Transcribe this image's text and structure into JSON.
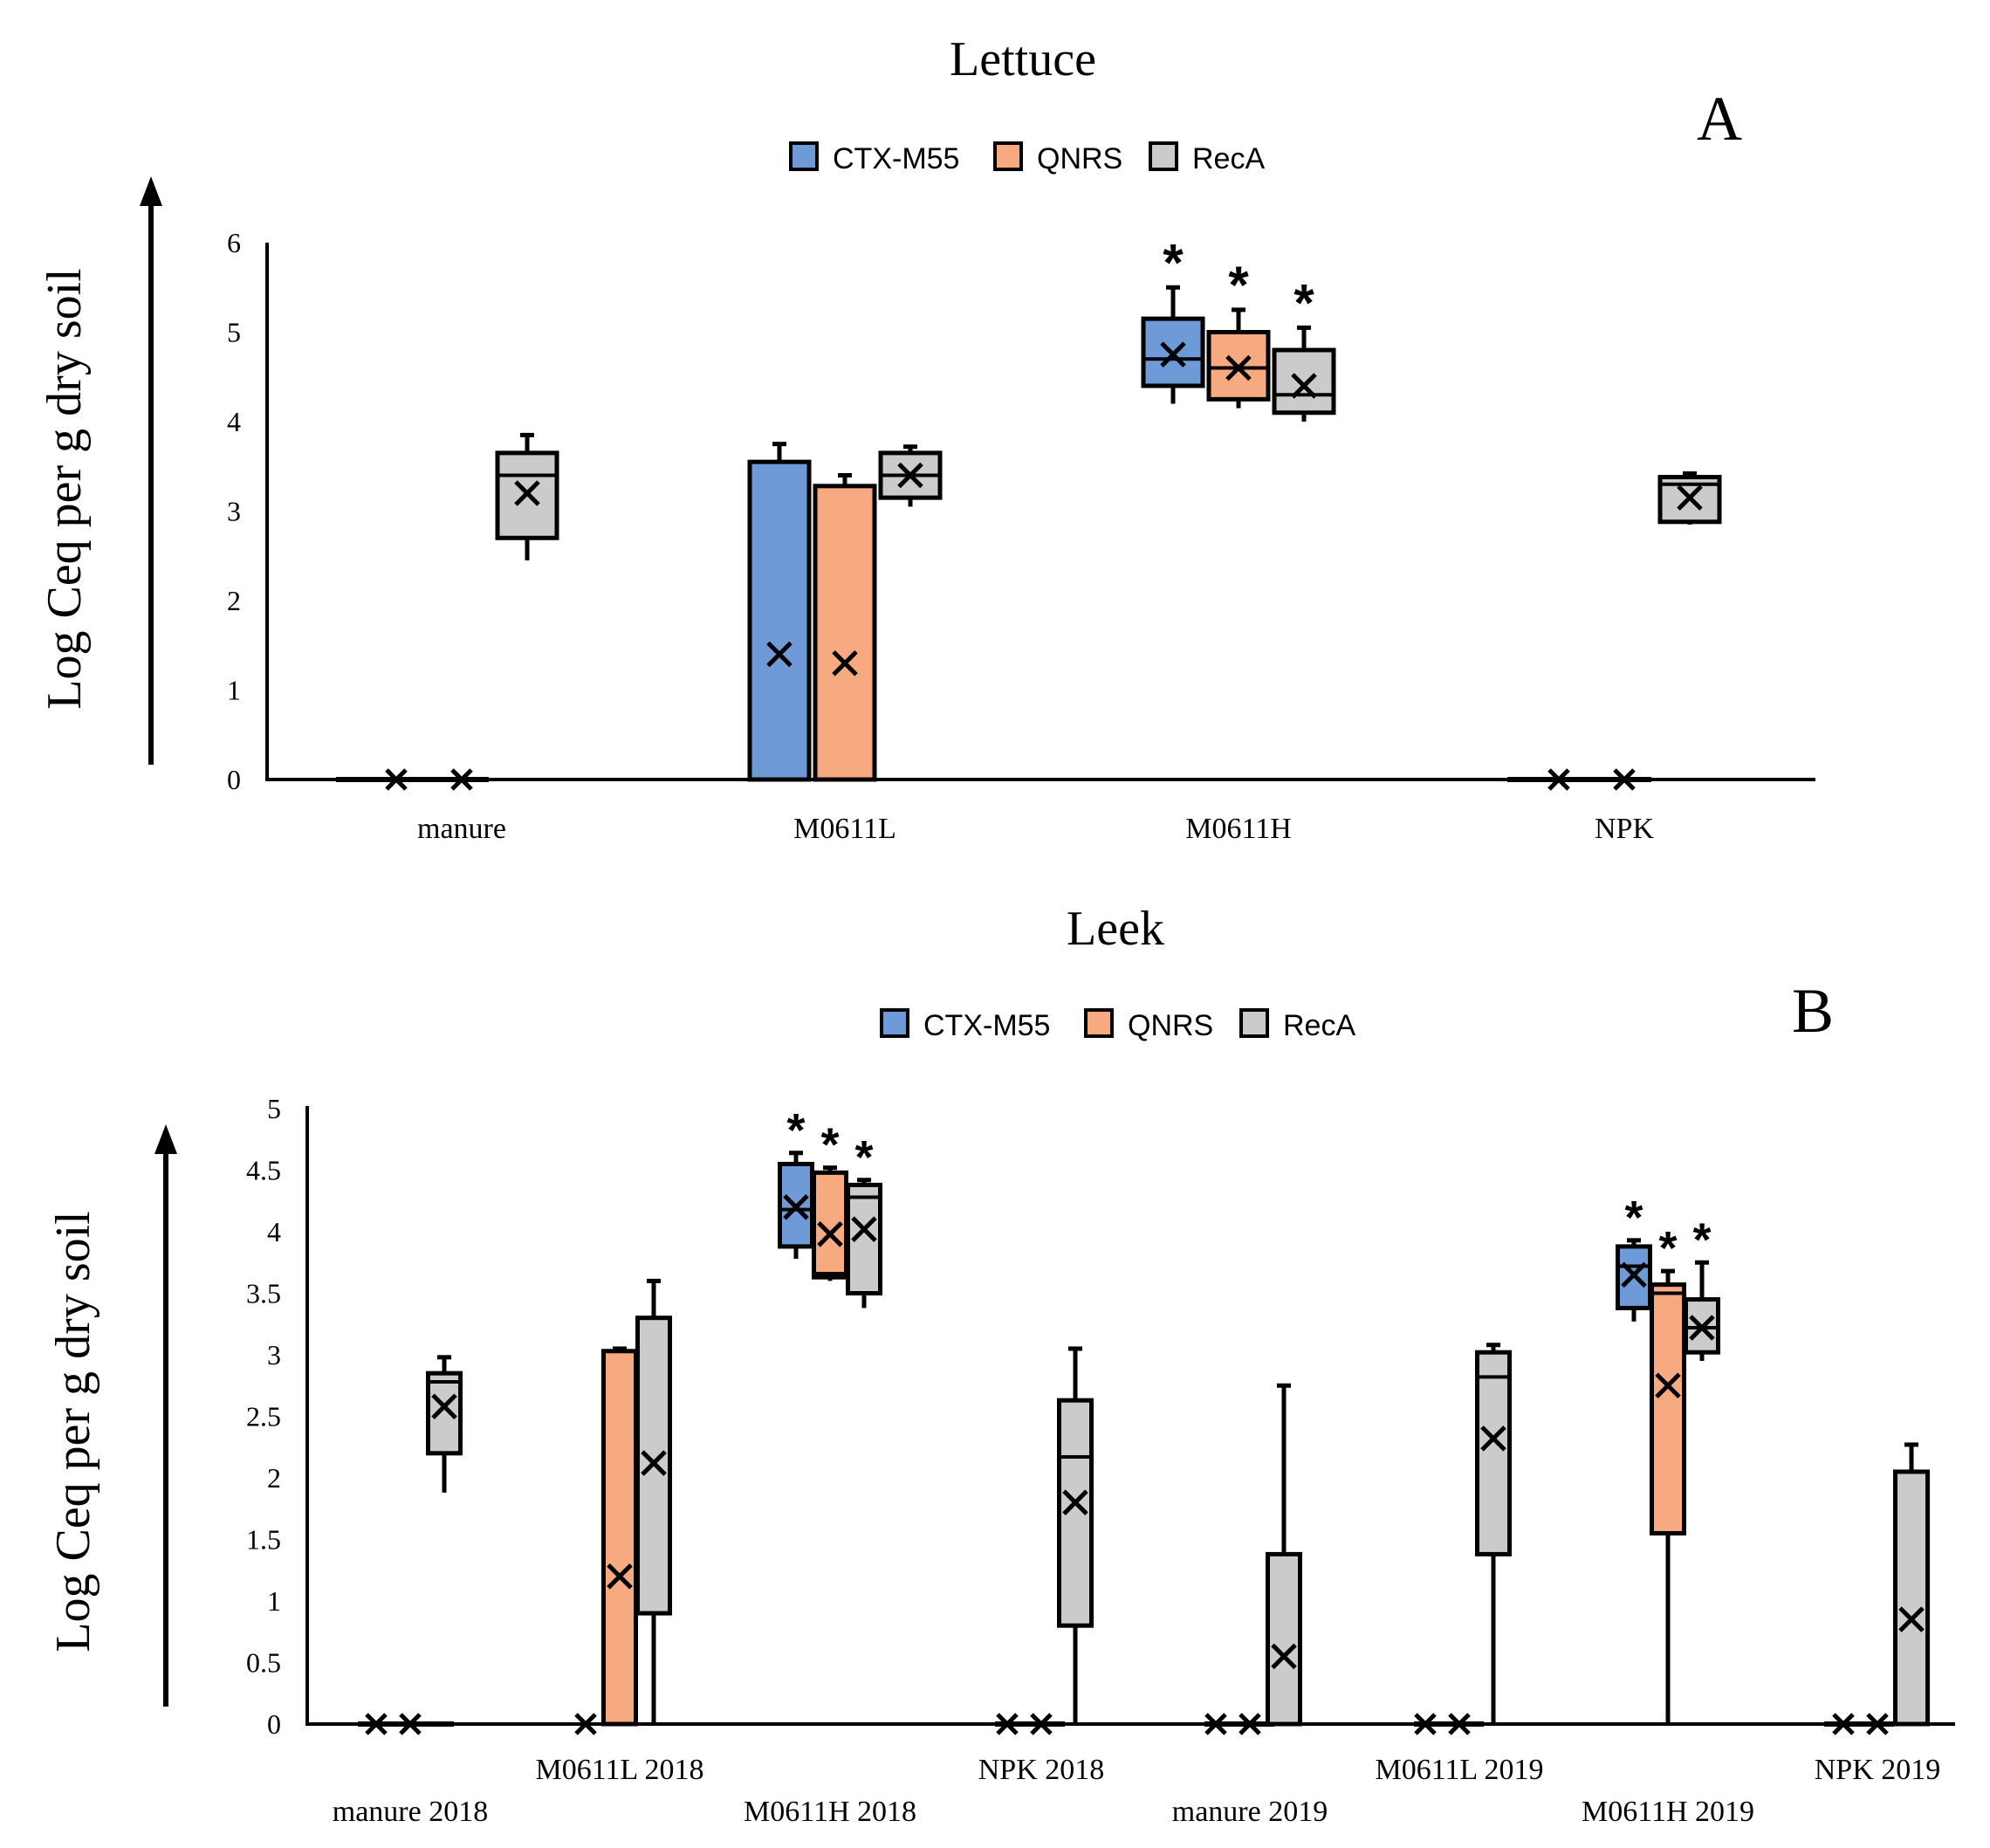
{
  "colors": {
    "CTX-M55": "#6f9ad8",
    "QNRS": "#f7aa80",
    "RecA": "#cbcbcb",
    "stroke": "#000000"
  },
  "chart_data": [
    {
      "id": "A",
      "type": "box",
      "title": "Lettuce",
      "panel_letter": "A",
      "ylabel": "Log Ceq per g dry soil",
      "xlabel": "",
      "ylim": [
        0,
        6
      ],
      "yticks": [
        "0",
        "1",
        "2",
        "3",
        "4",
        "5",
        "6"
      ],
      "legend": [
        "CTX-M55",
        "QNRS",
        "RecA"
      ],
      "legend_position": "top-center",
      "categories": [
        "manure",
        "M0611L",
        "M0611H",
        "NPK"
      ],
      "boxes": [
        {
          "category": "manure",
          "series": "CTX-M55",
          "mean": 0,
          "star": false
        },
        {
          "category": "manure",
          "series": "QNRS",
          "mean": 0,
          "star": false
        },
        {
          "category": "manure",
          "series": "RecA",
          "min": 2.45,
          "q1": 2.7,
          "median": 3.4,
          "q3": 3.65,
          "max": 3.85,
          "mean": 3.2,
          "star": false
        },
        {
          "category": "M0611L",
          "series": "CTX-M55",
          "min": 0,
          "q1": 0,
          "median": 3.55,
          "q3": 3.55,
          "max": 3.75,
          "mean": 1.4,
          "star": false
        },
        {
          "category": "M0611L",
          "series": "QNRS",
          "min": 0,
          "q1": 0,
          "median": 3.28,
          "q3": 3.28,
          "max": 3.4,
          "mean": 1.3,
          "star": false
        },
        {
          "category": "M0611L",
          "series": "RecA",
          "min": 3.05,
          "q1": 3.15,
          "median": 3.4,
          "q3": 3.65,
          "max": 3.72,
          "mean": 3.4,
          "star": false
        },
        {
          "category": "M0611H",
          "series": "CTX-M55",
          "min": 4.2,
          "q1": 4.4,
          "median": 4.7,
          "q3": 5.15,
          "max": 5.5,
          "mean": 4.75,
          "star": true
        },
        {
          "category": "M0611H",
          "series": "QNRS",
          "min": 4.15,
          "q1": 4.25,
          "median": 4.6,
          "q3": 5.0,
          "max": 5.25,
          "mean": 4.6,
          "star": true
        },
        {
          "category": "M0611H",
          "series": "RecA",
          "min": 4.0,
          "q1": 4.1,
          "median": 4.3,
          "q3": 4.8,
          "max": 5.05,
          "mean": 4.4,
          "star": true
        },
        {
          "category": "NPK",
          "series": "CTX-M55",
          "mean": 0,
          "star": false
        },
        {
          "category": "NPK",
          "series": "QNRS",
          "mean": 0,
          "star": false
        },
        {
          "category": "NPK",
          "series": "RecA",
          "min": 2.85,
          "q1": 2.88,
          "median": 3.3,
          "q3": 3.38,
          "max": 3.42,
          "mean": 3.15,
          "star": false
        }
      ]
    },
    {
      "id": "B",
      "type": "box",
      "title": "Leek",
      "panel_letter": "B",
      "ylabel": "Log Ceq per g dry soil",
      "xlabel": "",
      "ylim": [
        0,
        5
      ],
      "yticks": [
        "0",
        "0.5",
        "1",
        "1.5",
        "2",
        "2.5",
        "3",
        "3.5",
        "4",
        "4.5",
        "5"
      ],
      "legend": [
        "CTX-M55",
        "QNRS",
        "RecA"
      ],
      "legend_position": "top-center",
      "categories": [
        "manure 2018",
        "M0611L 2018",
        "M0611H 2018",
        "NPK 2018",
        "manure 2019",
        "M0611L 2019",
        "M0611H 2019",
        "NPK 2019"
      ],
      "boxes": [
        {
          "category": "manure 2018",
          "series": "CTX-M55",
          "mean": 0,
          "star": false
        },
        {
          "category": "manure 2018",
          "series": "QNRS",
          "mean": 0,
          "star": false
        },
        {
          "category": "manure 2018",
          "series": "RecA",
          "min": 1.88,
          "q1": 2.2,
          "median": 2.78,
          "q3": 2.85,
          "max": 2.98,
          "mean": 2.58,
          "star": false
        },
        {
          "category": "M0611L 2018",
          "series": "CTX-M55",
          "mean": 0,
          "star": false
        },
        {
          "category": "M0611L 2018",
          "series": "QNRS",
          "min": 0,
          "q1": 0,
          "median": 3.03,
          "q3": 3.03,
          "max": 3.05,
          "mean": 1.2,
          "star": false
        },
        {
          "category": "M0611L 2018",
          "series": "RecA",
          "min": 0,
          "q1": 0.9,
          "median": 3.3,
          "q3": 3.3,
          "max": 3.6,
          "mean": 2.12,
          "star": false
        },
        {
          "category": "M0611H 2018",
          "series": "CTX-M55",
          "min": 3.78,
          "q1": 3.88,
          "median": 4.18,
          "q3": 4.55,
          "max": 4.64,
          "mean": 4.2,
          "star": true
        },
        {
          "category": "M0611H 2018",
          "series": "QNRS",
          "min": 3.6,
          "q1": 3.63,
          "median": 3.66,
          "q3": 4.48,
          "max": 4.52,
          "mean": 3.98,
          "star": true
        },
        {
          "category": "M0611H 2018",
          "series": "RecA",
          "min": 3.38,
          "q1": 3.5,
          "median": 4.28,
          "q3": 4.38,
          "max": 4.42,
          "mean": 4.02,
          "star": true
        },
        {
          "category": "NPK 2018",
          "series": "CTX-M55",
          "mean": 0,
          "star": false
        },
        {
          "category": "NPK 2018",
          "series": "QNRS",
          "mean": 0,
          "star": false
        },
        {
          "category": "NPK 2018",
          "series": "RecA",
          "min": 0,
          "q1": 0.8,
          "median": 2.17,
          "q3": 2.63,
          "max": 3.05,
          "mean": 1.8,
          "star": false
        },
        {
          "category": "manure 2019",
          "series": "CTX-M55",
          "mean": 0,
          "star": false
        },
        {
          "category": "manure 2019",
          "series": "QNRS",
          "mean": 0,
          "star": false
        },
        {
          "category": "manure 2019",
          "series": "RecA",
          "min": 0,
          "q1": 0,
          "median": 0,
          "q3": 1.38,
          "max": 2.75,
          "mean": 0.55,
          "star": false
        },
        {
          "category": "M0611L 2019",
          "series": "CTX-M55",
          "mean": 0,
          "star": false
        },
        {
          "category": "M0611L 2019",
          "series": "QNRS",
          "mean": 0,
          "star": false
        },
        {
          "category": "M0611L 2019",
          "series": "RecA",
          "min": 0,
          "q1": 1.38,
          "median": 2.82,
          "q3": 3.02,
          "max": 3.08,
          "mean": 2.32,
          "star": false
        },
        {
          "category": "M0611H 2019",
          "series": "CTX-M55",
          "min": 3.27,
          "q1": 3.38,
          "median": 3.72,
          "q3": 3.88,
          "max": 3.93,
          "mean": 3.65,
          "star": true
        },
        {
          "category": "M0611H 2019",
          "series": "QNRS",
          "min": 0,
          "q1": 1.55,
          "median": 3.5,
          "q3": 3.57,
          "max": 3.68,
          "mean": 2.75,
          "star": true
        },
        {
          "category": "M0611H 2019",
          "series": "RecA",
          "min": 2.95,
          "q1": 3.02,
          "median": 3.22,
          "q3": 3.45,
          "max": 3.75,
          "mean": 3.22,
          "star": true
        },
        {
          "category": "NPK 2019",
          "series": "CTX-M55",
          "mean": 0,
          "star": false
        },
        {
          "category": "NPK 2019",
          "series": "QNRS",
          "mean": 0,
          "star": false
        },
        {
          "category": "NPK 2019",
          "series": "RecA",
          "min": 0,
          "q1": 0,
          "median": 2.05,
          "q3": 2.05,
          "max": 2.27,
          "mean": 0.85,
          "star": false
        }
      ]
    }
  ]
}
